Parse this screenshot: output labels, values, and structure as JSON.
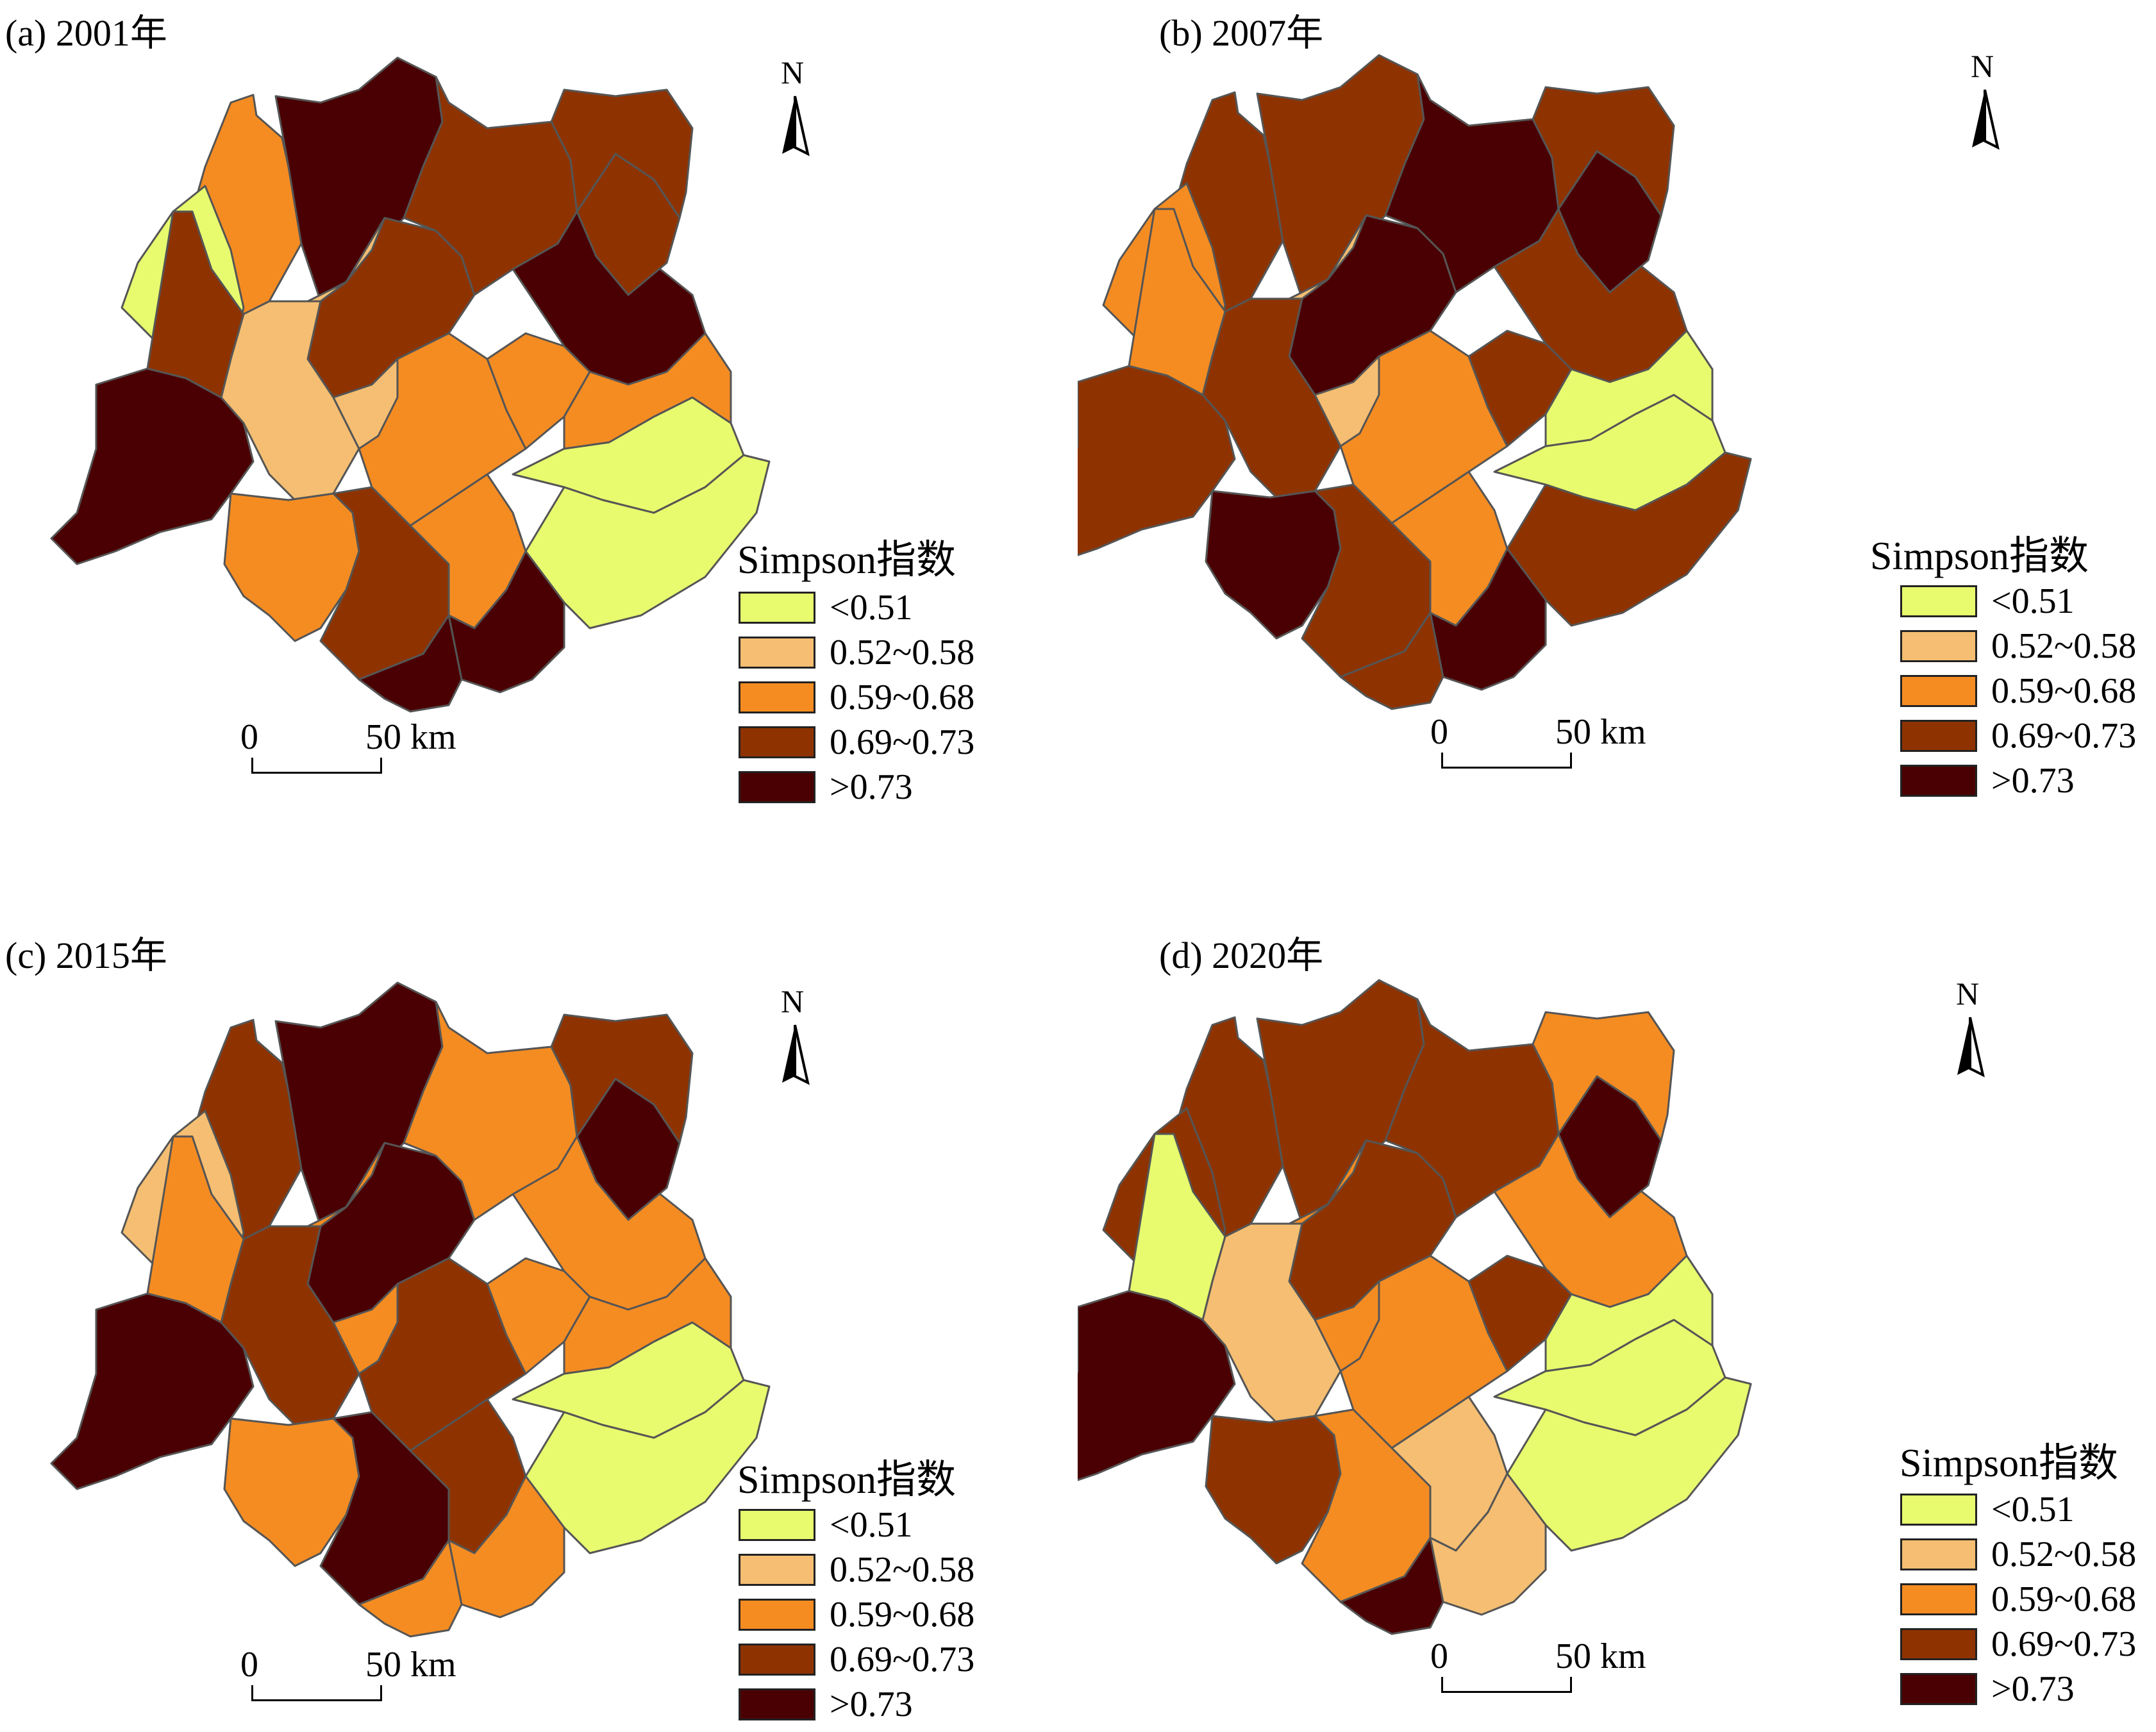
{
  "legend": {
    "title": "Simpson指数",
    "classes": [
      {
        "label": "<0.51",
        "color": "#E8FB6E"
      },
      {
        "label": "0.52~0.58",
        "color": "#F5BE72"
      },
      {
        "label": "0.59~0.68",
        "color": "#F58C22"
      },
      {
        "label": "0.69~0.73",
        "color": "#8E3300"
      },
      {
        "label": ">0.73",
        "color": "#4A0002"
      }
    ]
  },
  "scale_bar": {
    "zero": "0",
    "distance": "50 km"
  },
  "north_arrow": {
    "letter": "N"
  },
  "boundary_color": "#555555",
  "panels": [
    {
      "title": "(a) 2001年",
      "classes": [
        2,
        0,
        4,
        4,
        3,
        1,
        2,
        3,
        3,
        2,
        1,
        2,
        2,
        4,
        3,
        3,
        0,
        0,
        4,
        2,
        1,
        4,
        3
      ]
    },
    {
      "title": "(b) 2007年",
      "classes": [
        3,
        2,
        3,
        3,
        4,
        3,
        4,
        3,
        4,
        2,
        1,
        2,
        3,
        3,
        4,
        3,
        0,
        3,
        4,
        0,
        1,
        3,
        2
      ]
    },
    {
      "title": "(c) 2015年",
      "classes": [
        3,
        1,
        4,
        4,
        4,
        3,
        2,
        4,
        2,
        3,
        2,
        3,
        2,
        2,
        4,
        3,
        0,
        0,
        2,
        2,
        2,
        2,
        2
      ]
    },
    {
      "title": "(d) 2020年",
      "classes": [
        3,
        3,
        4,
        3,
        3,
        1,
        3,
        2,
        3,
        2,
        2,
        1,
        3,
        2,
        4,
        2,
        0,
        0,
        1,
        0,
        2,
        4,
        0
      ]
    }
  ]
}
